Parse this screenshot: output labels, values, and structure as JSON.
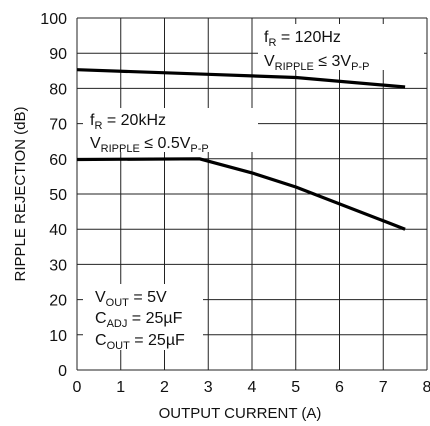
{
  "chart_data": {
    "type": "line",
    "xlabel": "OUTPUT CURRENT (A)",
    "ylabel": "RIPPLE REJECTION (dB)",
    "xlim": [
      0,
      8
    ],
    "ylim": [
      0,
      100
    ],
    "x_ticks": [
      "0",
      "1",
      "2",
      "3",
      "4",
      "5",
      "6",
      "7",
      "8"
    ],
    "y_ticks": [
      "0",
      "10",
      "20",
      "30",
      "40",
      "50",
      "60",
      "70",
      "80",
      "90",
      "100"
    ],
    "grid": true,
    "series": [
      {
        "points": [
          [
            0,
            85.3
          ],
          [
            3,
            84
          ],
          [
            5,
            83.1
          ],
          [
            7.5,
            80.4
          ]
        ]
      },
      {
        "points": [
          [
            0,
            59.8
          ],
          [
            2.8,
            60
          ],
          [
            4,
            56
          ],
          [
            5,
            52
          ],
          [
            7.5,
            40
          ]
        ]
      }
    ],
    "annotations": [
      {
        "id": "ann-120hz",
        "lines": [
          [
            {
              "t": "f"
            },
            {
              "t": "R",
              "sub": true
            },
            {
              "t": " = 120Hz"
            }
          ],
          [
            {
              "t": "V"
            },
            {
              "t": "RIPPLE",
              "sub": true
            },
            {
              "t": " ≤ 3V"
            },
            {
              "t": "P-P",
              "sub": true
            }
          ]
        ]
      },
      {
        "id": "ann-20khz",
        "lines": [
          [
            {
              "t": "f"
            },
            {
              "t": "R",
              "sub": true
            },
            {
              "t": " = 20kHz"
            }
          ],
          [
            {
              "t": "V"
            },
            {
              "t": "RIPPLE",
              "sub": true
            },
            {
              "t": " ≤ 0.5V"
            },
            {
              "t": "P-P",
              "sub": true
            }
          ]
        ]
      },
      {
        "id": "ann-conditions",
        "lines": [
          [
            {
              "t": "V"
            },
            {
              "t": "OUT",
              "sub": true
            },
            {
              "t": " = 5V"
            }
          ],
          [
            {
              "t": "C"
            },
            {
              "t": "ADJ",
              "sub": true
            },
            {
              "t": " = 25µF"
            }
          ],
          [
            {
              "t": "C"
            },
            {
              "t": "OUT",
              "sub": true
            },
            {
              "t": " = 25µF"
            }
          ]
        ]
      }
    ]
  }
}
